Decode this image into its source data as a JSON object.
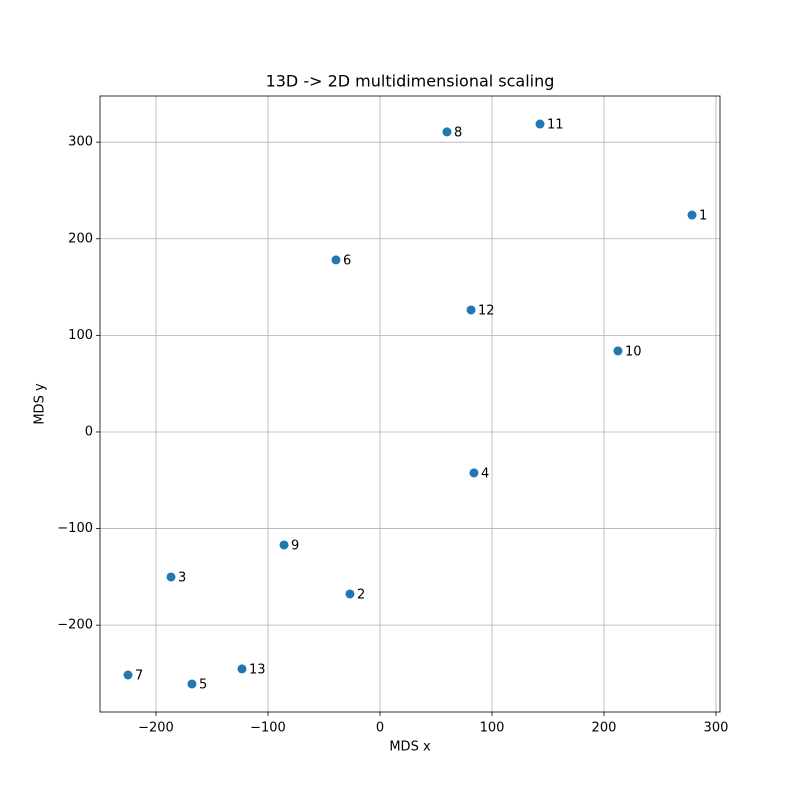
{
  "chart_data": {
    "type": "scatter",
    "title": "13D -> 2D multidimensional scaling",
    "x_label": "MDS x",
    "y_label": "MDS y",
    "series": [
      {
        "color": "#1f77b4",
        "labels": [
          "1",
          "2",
          "3",
          "4",
          "5",
          "6",
          "7",
          "8",
          "9",
          "10",
          "11",
          "12",
          "13"
        ],
        "x": [
          278.6,
          -26.8,
          -186.6,
          83.9,
          -167.9,
          -39.3,
          -225,
          59.8,
          -85.7,
          212.5,
          142.9,
          81.3,
          -123.2
        ],
        "values": [
          224.6,
          -167.7,
          -150.1,
          -42.4,
          -260.9,
          178.1,
          -251.6,
          310.6,
          -117,
          83.9,
          318.8,
          126.3,
          -245.3
        ]
      }
    ],
    "xlim": [
      -250,
      303.6
    ],
    "ylim": [
      -289.9,
      347.8
    ],
    "xticks": [
      {
        "value": -200,
        "label": "−200"
      },
      {
        "value": -100,
        "label": "−100"
      },
      0,
      100,
      200,
      300
    ],
    "yticks": [
      {
        "value": -200,
        "label": "−200"
      },
      {
        "value": -100,
        "label": "−100"
      },
      0,
      100,
      200,
      300
    ],
    "grid": true
  }
}
